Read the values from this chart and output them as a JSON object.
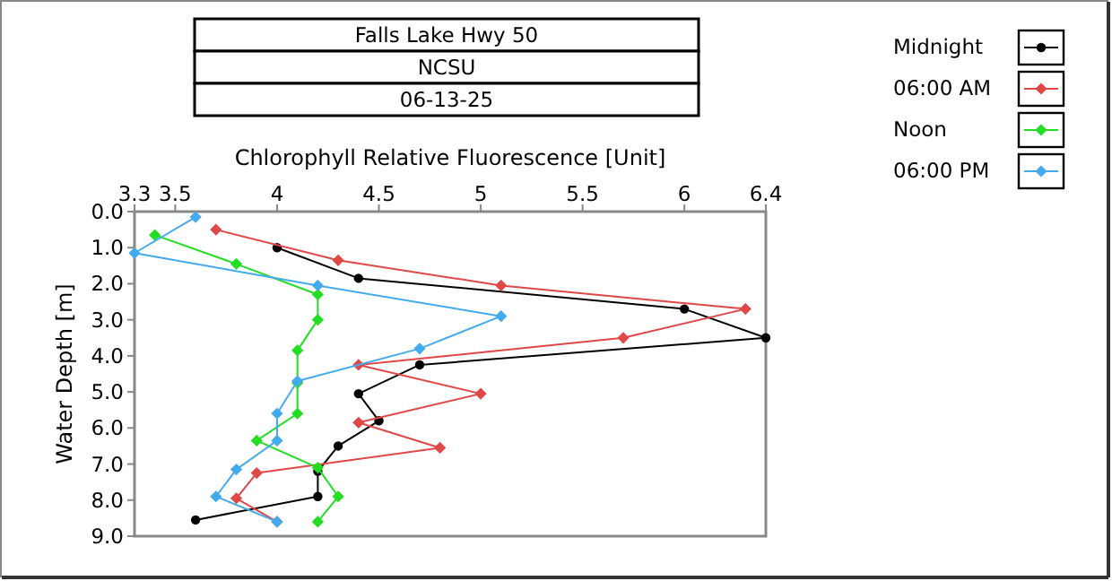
{
  "chart_data": {
    "type": "line",
    "title": "Falls Lake Hwy 50",
    "subtitle": "NCSU",
    "annotations": [
      "06-13-25"
    ],
    "xlabel": "Chlorophyll Relative Fluorescence [Unit]",
    "ylabel": "Water Depth [m]",
    "xlim": [
      3.3,
      6.4
    ],
    "xticks": [
      3.3,
      3.5,
      4,
      4.5,
      5,
      5.5,
      6,
      6.4
    ],
    "ylim": [
      9,
      0
    ],
    "yticks": [
      {
        "value": 0,
        "label": "0.0"
      },
      {
        "value": 1,
        "label": "1.0"
      },
      {
        "value": 2,
        "label": "2.0"
      },
      {
        "value": 3,
        "label": "3.0"
      },
      {
        "value": 4,
        "label": "4.0"
      },
      {
        "value": 5,
        "label": "5.0"
      },
      {
        "value": 6,
        "label": "6.0"
      },
      {
        "value": 7,
        "label": "7.0"
      },
      {
        "value": 8,
        "label": "8.0"
      },
      {
        "value": 9,
        "label": "9.0"
      }
    ],
    "grid": false,
    "legend": "right",
    "line_style": "solid",
    "series": [
      {
        "name": "Midnight",
        "color": "#000000",
        "marker": "circle",
        "x": [
          4.0,
          4.4,
          6.0,
          6.4,
          4.7,
          4.4,
          4.5,
          4.3,
          4.2,
          4.2,
          3.6
        ],
        "values": [
          1.0,
          1.85,
          2.7,
          3.5,
          4.25,
          5.05,
          5.8,
          6.5,
          7.2,
          7.9,
          8.55
        ]
      },
      {
        "name": "06:00 AM",
        "color": "#e04848",
        "marker": "diamond",
        "x": [
          3.7,
          4.3,
          5.1,
          6.3,
          5.7,
          4.4,
          5.0,
          4.4,
          4.8,
          3.9,
          3.8,
          4.0
        ],
        "values": [
          0.5,
          1.35,
          2.05,
          2.7,
          3.5,
          4.25,
          5.05,
          5.85,
          6.55,
          7.25,
          7.95,
          8.6
        ]
      },
      {
        "name": "Noon",
        "color": "#22dd22",
        "marker": "diamond",
        "x": [
          3.4,
          3.8,
          4.2,
          4.2,
          4.1,
          4.1,
          4.1,
          3.9,
          4.2,
          4.3,
          4.2
        ],
        "values": [
          0.65,
          1.45,
          2.3,
          3.0,
          3.85,
          4.75,
          5.6,
          6.35,
          7.1,
          7.9,
          8.6
        ]
      },
      {
        "name": "06:00 PM",
        "color": "#44aaee",
        "marker": "diamond",
        "x": [
          3.6,
          3.3,
          4.2,
          5.1,
          4.7,
          4.1,
          4.0,
          4.0,
          3.8,
          3.7,
          4.0
        ],
        "values": [
          0.15,
          1.15,
          2.05,
          2.9,
          3.8,
          4.7,
          5.6,
          6.35,
          7.15,
          7.9,
          8.6
        ]
      }
    ]
  }
}
